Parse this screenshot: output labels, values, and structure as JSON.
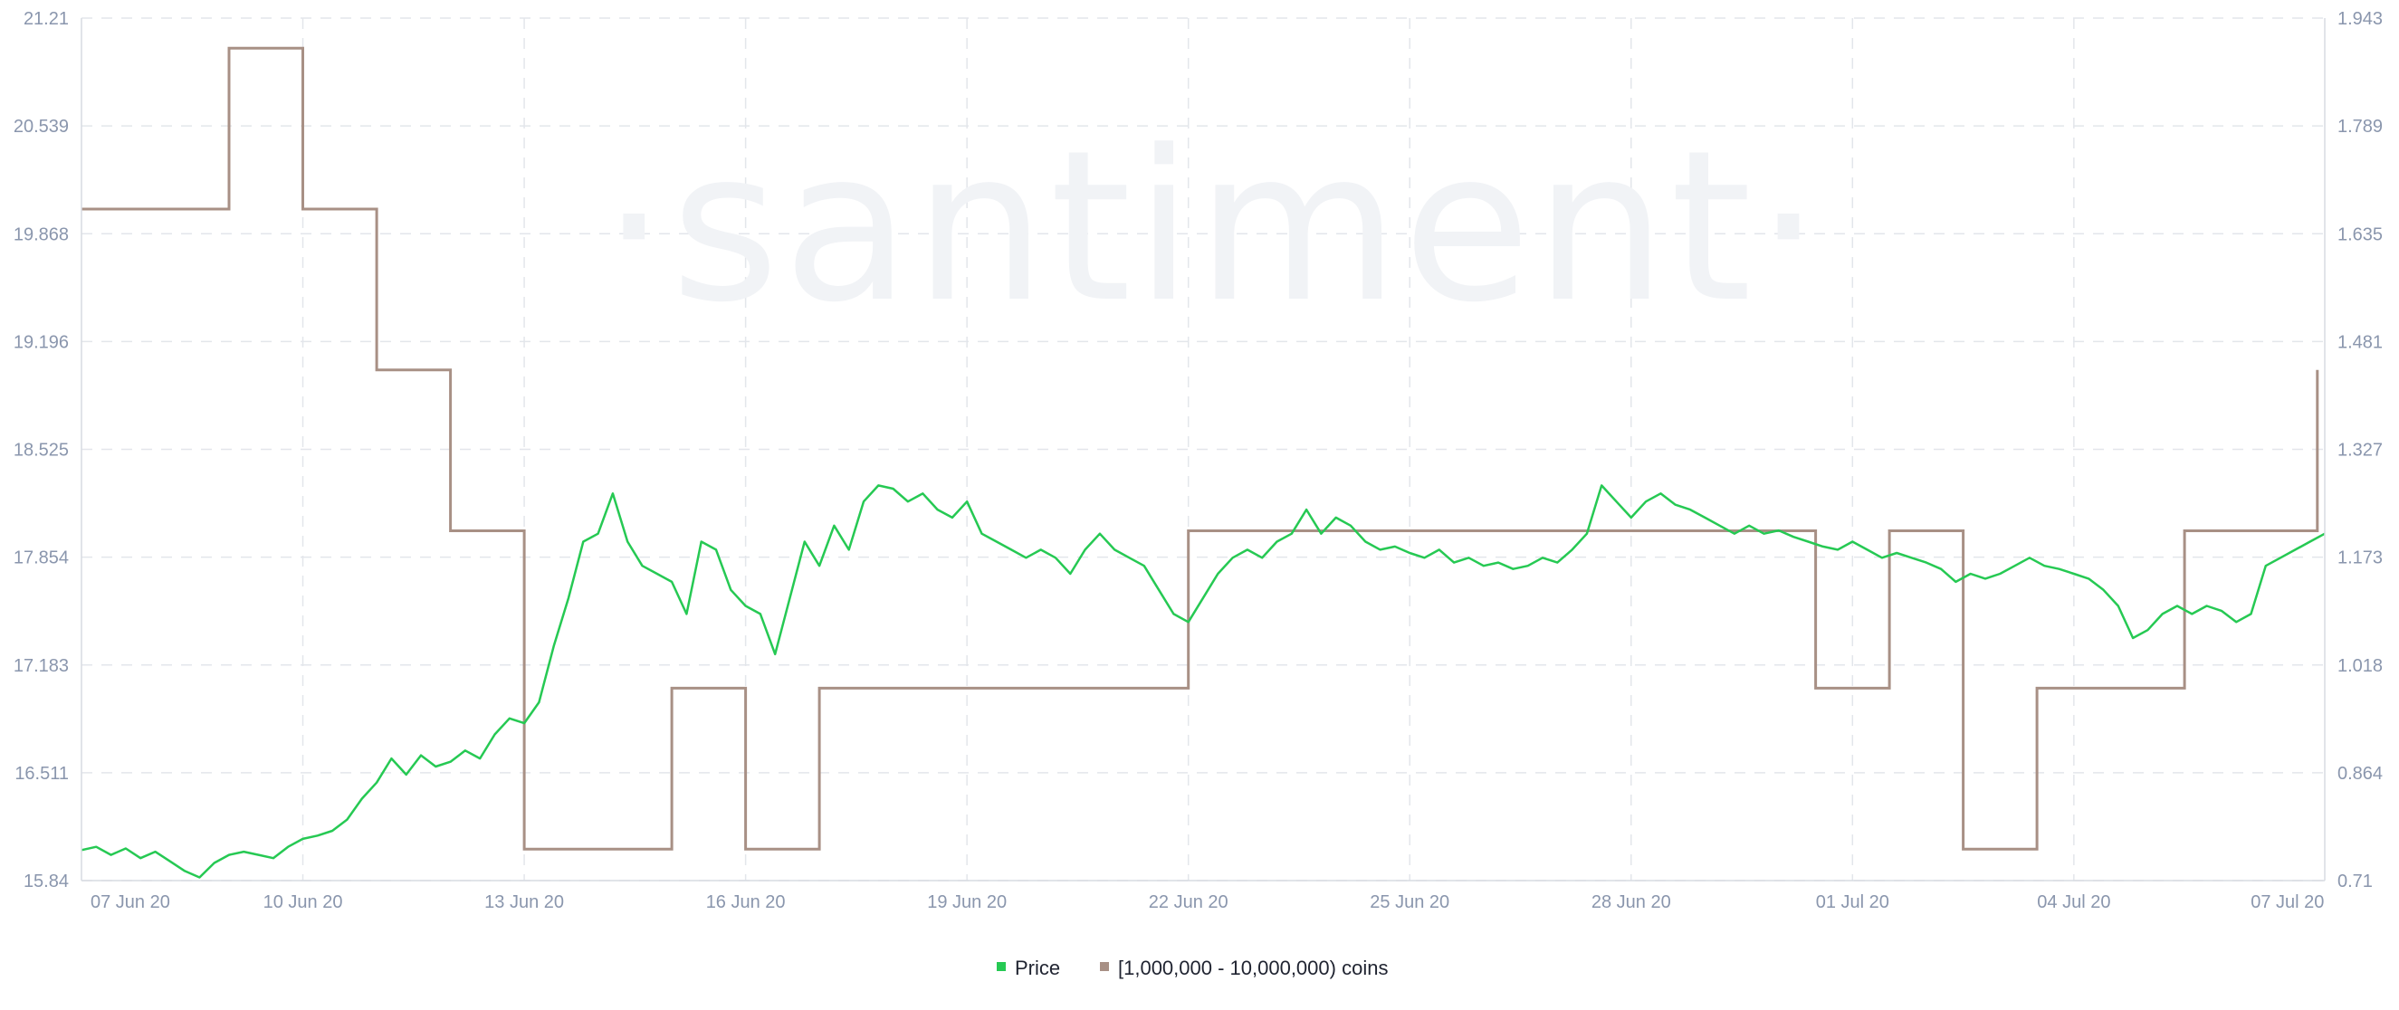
{
  "chart_data": {
    "type": "line",
    "watermark": "·santiment·",
    "x_tick_labels": [
      "07 Jun 20",
      "10 Jun 20",
      "13 Jun 20",
      "16 Jun 20",
      "19 Jun 20",
      "22 Jun 20",
      "25 Jun 20",
      "28 Jun 20",
      "01 Jul 20",
      "04 Jul 20",
      "07 Jul 20"
    ],
    "y_left_ticks": [
      "21.21",
      "20.539",
      "19.868",
      "19.196",
      "18.525",
      "17.854",
      "17.183",
      "16.511",
      "15.84"
    ],
    "y_right_ticks": [
      "1.943",
      "1.789",
      "1.635",
      "1.481",
      "1.327",
      "1.173",
      "1.018",
      "0.864",
      "0.71"
    ],
    "y_left_range": [
      15.84,
      21.21
    ],
    "y_right_range": [
      0.71,
      1.943
    ],
    "x_range_days": [
      0,
      30.4
    ],
    "grid": true,
    "legend_position": "bottom-center",
    "colors": {
      "price": "#26c953",
      "holders": "#a89085",
      "grid": "#e3e6eb",
      "tick": "#8a96ad"
    },
    "series": [
      {
        "name": "Price",
        "axis": "left",
        "points": [
          [
            0,
            16.03
          ],
          [
            0.2,
            16.05
          ],
          [
            0.4,
            16.0
          ],
          [
            0.6,
            16.04
          ],
          [
            0.8,
            15.98
          ],
          [
            1.0,
            16.02
          ],
          [
            1.2,
            15.96
          ],
          [
            1.4,
            15.9
          ],
          [
            1.6,
            15.86
          ],
          [
            1.8,
            15.95
          ],
          [
            2.0,
            16.0
          ],
          [
            2.2,
            16.02
          ],
          [
            2.4,
            16.0
          ],
          [
            2.6,
            15.98
          ],
          [
            2.8,
            16.05
          ],
          [
            3.0,
            16.1
          ],
          [
            3.2,
            16.12
          ],
          [
            3.4,
            16.15
          ],
          [
            3.6,
            16.22
          ],
          [
            3.8,
            16.35
          ],
          [
            4.0,
            16.45
          ],
          [
            4.2,
            16.6
          ],
          [
            4.4,
            16.5
          ],
          [
            4.6,
            16.62
          ],
          [
            4.8,
            16.55
          ],
          [
            5.0,
            16.58
          ],
          [
            5.2,
            16.65
          ],
          [
            5.4,
            16.6
          ],
          [
            5.6,
            16.75
          ],
          [
            5.8,
            16.85
          ],
          [
            6.0,
            16.82
          ],
          [
            6.2,
            16.95
          ],
          [
            6.4,
            17.3
          ],
          [
            6.6,
            17.6
          ],
          [
            6.8,
            17.95
          ],
          [
            7.0,
            18.0
          ],
          [
            7.2,
            18.25
          ],
          [
            7.4,
            17.95
          ],
          [
            7.6,
            17.8
          ],
          [
            7.8,
            17.75
          ],
          [
            8.0,
            17.7
          ],
          [
            8.2,
            17.5
          ],
          [
            8.4,
            17.95
          ],
          [
            8.6,
            17.9
          ],
          [
            8.8,
            17.65
          ],
          [
            9.0,
            17.55
          ],
          [
            9.2,
            17.5
          ],
          [
            9.4,
            17.25
          ],
          [
            9.6,
            17.6
          ],
          [
            9.8,
            17.95
          ],
          [
            10.0,
            17.8
          ],
          [
            10.2,
            18.05
          ],
          [
            10.4,
            17.9
          ],
          [
            10.6,
            18.2
          ],
          [
            10.8,
            18.3
          ],
          [
            11.0,
            18.28
          ],
          [
            11.2,
            18.2
          ],
          [
            11.4,
            18.25
          ],
          [
            11.6,
            18.15
          ],
          [
            11.8,
            18.1
          ],
          [
            12.0,
            18.2
          ],
          [
            12.2,
            18.0
          ],
          [
            12.4,
            17.95
          ],
          [
            12.6,
            17.9
          ],
          [
            12.8,
            17.85
          ],
          [
            13.0,
            17.9
          ],
          [
            13.2,
            17.85
          ],
          [
            13.4,
            17.75
          ],
          [
            13.6,
            17.9
          ],
          [
            13.8,
            18.0
          ],
          [
            14.0,
            17.9
          ],
          [
            14.2,
            17.85
          ],
          [
            14.4,
            17.8
          ],
          [
            14.6,
            17.65
          ],
          [
            14.8,
            17.5
          ],
          [
            15.0,
            17.45
          ],
          [
            15.2,
            17.6
          ],
          [
            15.4,
            17.75
          ],
          [
            15.6,
            17.85
          ],
          [
            15.8,
            17.9
          ],
          [
            16.0,
            17.85
          ],
          [
            16.2,
            17.95
          ],
          [
            16.4,
            18.0
          ],
          [
            16.6,
            18.15
          ],
          [
            16.8,
            18.0
          ],
          [
            17.0,
            18.1
          ],
          [
            17.2,
            18.05
          ],
          [
            17.4,
            17.95
          ],
          [
            17.6,
            17.9
          ],
          [
            17.8,
            17.92
          ],
          [
            18.0,
            17.88
          ],
          [
            18.2,
            17.85
          ],
          [
            18.4,
            17.9
          ],
          [
            18.6,
            17.82
          ],
          [
            18.8,
            17.85
          ],
          [
            19.0,
            17.8
          ],
          [
            19.2,
            17.82
          ],
          [
            19.4,
            17.78
          ],
          [
            19.6,
            17.8
          ],
          [
            19.8,
            17.85
          ],
          [
            20.0,
            17.82
          ],
          [
            20.2,
            17.9
          ],
          [
            20.4,
            18.0
          ],
          [
            20.6,
            18.3
          ],
          [
            20.8,
            18.2
          ],
          [
            21.0,
            18.1
          ],
          [
            21.2,
            18.2
          ],
          [
            21.4,
            18.25
          ],
          [
            21.6,
            18.18
          ],
          [
            21.8,
            18.15
          ],
          [
            22.0,
            18.1
          ],
          [
            22.2,
            18.05
          ],
          [
            22.4,
            18.0
          ],
          [
            22.6,
            18.05
          ],
          [
            22.8,
            18.0
          ],
          [
            23.0,
            18.02
          ],
          [
            23.2,
            17.98
          ],
          [
            23.4,
            17.95
          ],
          [
            23.6,
            17.92
          ],
          [
            23.8,
            17.9
          ],
          [
            24.0,
            17.95
          ],
          [
            24.2,
            17.9
          ],
          [
            24.4,
            17.85
          ],
          [
            24.6,
            17.88
          ],
          [
            24.8,
            17.85
          ],
          [
            25.0,
            17.82
          ],
          [
            25.2,
            17.78
          ],
          [
            25.4,
            17.7
          ],
          [
            25.6,
            17.75
          ],
          [
            25.8,
            17.72
          ],
          [
            26.0,
            17.75
          ],
          [
            26.2,
            17.8
          ],
          [
            26.4,
            17.85
          ],
          [
            26.6,
            17.8
          ],
          [
            26.8,
            17.78
          ],
          [
            27.0,
            17.75
          ],
          [
            27.2,
            17.72
          ],
          [
            27.4,
            17.65
          ],
          [
            27.6,
            17.55
          ],
          [
            27.8,
            17.35
          ],
          [
            28.0,
            17.4
          ],
          [
            28.2,
            17.5
          ],
          [
            28.4,
            17.55
          ],
          [
            28.6,
            17.5
          ],
          [
            28.8,
            17.55
          ],
          [
            29.0,
            17.52
          ],
          [
            29.2,
            17.45
          ],
          [
            29.4,
            17.5
          ],
          [
            29.6,
            17.8
          ],
          [
            29.8,
            17.85
          ],
          [
            30.0,
            17.9
          ],
          [
            30.2,
            17.95
          ],
          [
            30.4,
            18.0
          ]
        ]
      },
      {
        "name": "[1,000,000 - 10,000,000) coins",
        "axis": "right",
        "steps": [
          [
            0,
            1.67
          ],
          [
            2.0,
            1.67
          ],
          [
            2.0,
            1.9
          ],
          [
            3.0,
            1.9
          ],
          [
            3.0,
            1.67
          ],
          [
            4.0,
            1.67
          ],
          [
            4.0,
            1.44
          ],
          [
            5.0,
            1.44
          ],
          [
            5.0,
            1.21
          ],
          [
            6.0,
            1.21
          ],
          [
            6.0,
            0.755
          ],
          [
            8.0,
            0.755
          ],
          [
            8.0,
            0.985
          ],
          [
            9.0,
            0.985
          ],
          [
            9.0,
            0.755
          ],
          [
            10.0,
            0.755
          ],
          [
            10.0,
            0.985
          ],
          [
            15.0,
            0.985
          ],
          [
            15.0,
            1.21
          ],
          [
            23.5,
            1.21
          ],
          [
            23.5,
            0.985
          ],
          [
            24.5,
            0.985
          ],
          [
            24.5,
            1.21
          ],
          [
            25.5,
            1.21
          ],
          [
            25.5,
            0.755
          ],
          [
            26.5,
            0.755
          ],
          [
            26.5,
            0.985
          ],
          [
            28.5,
            0.985
          ],
          [
            28.5,
            1.21
          ],
          [
            30.3,
            1.21
          ],
          [
            30.3,
            1.44
          ]
        ]
      }
    ]
  }
}
